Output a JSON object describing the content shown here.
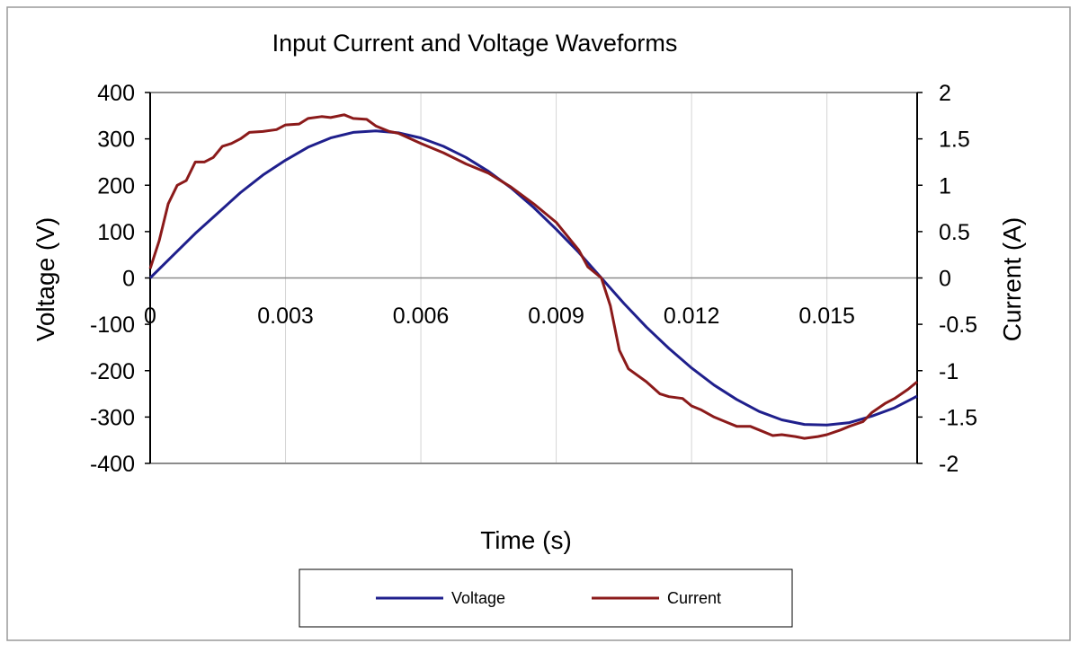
{
  "chart_data": {
    "type": "line",
    "title": "Input Current and Voltage Waveforms",
    "xlabel": "Time (s)",
    "ylabel": "Voltage (V)",
    "y2label": "Current (A)",
    "xlim": [
      0,
      0.017
    ],
    "ylim": [
      -400,
      400
    ],
    "y2lim": [
      -2,
      2
    ],
    "xticks": [
      "0",
      "0.003",
      "0.006",
      "0.009",
      "0.012",
      "0.015"
    ],
    "yticks": [
      "400",
      "300",
      "200",
      "100",
      "0",
      "-100",
      "-200",
      "-300",
      "-400"
    ],
    "y2ticks": [
      "2",
      "1.5",
      "1",
      "0.5",
      "0",
      "-0.5",
      "-1",
      "-1.5",
      "-2"
    ],
    "grid": {
      "vertical": true,
      "horizontal": false
    },
    "legend_position": "bottom",
    "series": [
      {
        "name": "Voltage",
        "axis": "left",
        "color": "#1f1f8c",
        "x": [
          0,
          0.0005,
          0.001,
          0.0015,
          0.002,
          0.0025,
          0.003,
          0.0035,
          0.004,
          0.0045,
          0.005,
          0.0055,
          0.006,
          0.0065,
          0.007,
          0.0075,
          0.008,
          0.0085,
          0.009,
          0.0095,
          0.01,
          0.0105,
          0.011,
          0.0115,
          0.012,
          0.0125,
          0.013,
          0.0135,
          0.014,
          0.0145,
          0.015,
          0.0155,
          0.016,
          0.0165,
          0.017
        ],
        "values": [
          0,
          48,
          96,
          140,
          184,
          222,
          254,
          282,
          302,
          314,
          317,
          313,
          302,
          284,
          260,
          230,
          194,
          152,
          105,
          55,
          0,
          -55,
          -106,
          -152,
          -194,
          -231,
          -262,
          -288,
          -306,
          -316,
          -317,
          -312,
          -298,
          -280,
          -255
        ]
      },
      {
        "name": "Current",
        "axis": "right",
        "color": "#8b1a1a",
        "x": [
          0,
          0.0002,
          0.0004,
          0.0006,
          0.0008,
          0.001,
          0.0012,
          0.0014,
          0.0016,
          0.0018,
          0.002,
          0.0022,
          0.0025,
          0.0028,
          0.003,
          0.0033,
          0.0035,
          0.0038,
          0.004,
          0.0043,
          0.0045,
          0.0048,
          0.005,
          0.0053,
          0.0055,
          0.006,
          0.0065,
          0.007,
          0.0075,
          0.008,
          0.0085,
          0.009,
          0.0093,
          0.0095,
          0.0097,
          0.01,
          0.0102,
          0.0104,
          0.0106,
          0.011,
          0.0113,
          0.0115,
          0.0118,
          0.012,
          0.0122,
          0.0125,
          0.0128,
          0.013,
          0.0133,
          0.0135,
          0.0138,
          0.014,
          0.0143,
          0.0145,
          0.0148,
          0.015,
          0.0153,
          0.0155,
          0.0158,
          0.016,
          0.0163,
          0.0165,
          0.0168,
          0.017
        ],
        "values": [
          0.1,
          0.4,
          0.8,
          1.0,
          1.05,
          1.25,
          1.25,
          1.3,
          1.42,
          1.45,
          1.5,
          1.57,
          1.58,
          1.6,
          1.65,
          1.66,
          1.72,
          1.74,
          1.73,
          1.76,
          1.72,
          1.71,
          1.64,
          1.58,
          1.56,
          1.45,
          1.35,
          1.23,
          1.13,
          0.98,
          0.8,
          0.6,
          0.42,
          0.3,
          0.12,
          0.0,
          -0.3,
          -0.78,
          -0.98,
          -1.12,
          -1.25,
          -1.28,
          -1.3,
          -1.38,
          -1.42,
          -1.5,
          -1.56,
          -1.6,
          -1.6,
          -1.64,
          -1.7,
          -1.69,
          -1.71,
          -1.73,
          -1.71,
          -1.69,
          -1.64,
          -1.6,
          -1.55,
          -1.45,
          -1.35,
          -1.3,
          -1.2,
          -1.12
        ]
      }
    ]
  }
}
